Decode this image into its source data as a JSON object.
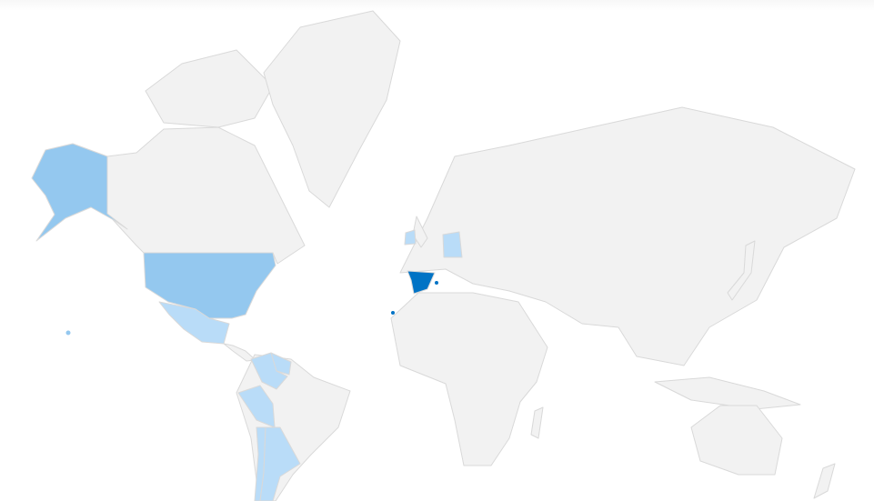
{
  "map": {
    "type": "choropleth",
    "colors": {
      "no_data": "#f2f2f2",
      "border": "#d9d9d9",
      "level_low": "#b9dcf8",
      "level_mid": "#94c8ef",
      "level_high": "#0073c5"
    },
    "regions": [
      {
        "id": "spain",
        "level": "level_high"
      },
      {
        "id": "united-states",
        "level": "level_mid"
      },
      {
        "id": "mexico",
        "level": "level_low"
      },
      {
        "id": "colombia",
        "level": "level_low"
      },
      {
        "id": "venezuela",
        "level": "level_low"
      },
      {
        "id": "peru",
        "level": "level_low"
      },
      {
        "id": "chile",
        "level": "level_low"
      },
      {
        "id": "argentina",
        "level": "level_low"
      },
      {
        "id": "germany",
        "level": "level_low"
      },
      {
        "id": "ireland",
        "level": "level_low"
      }
    ]
  }
}
